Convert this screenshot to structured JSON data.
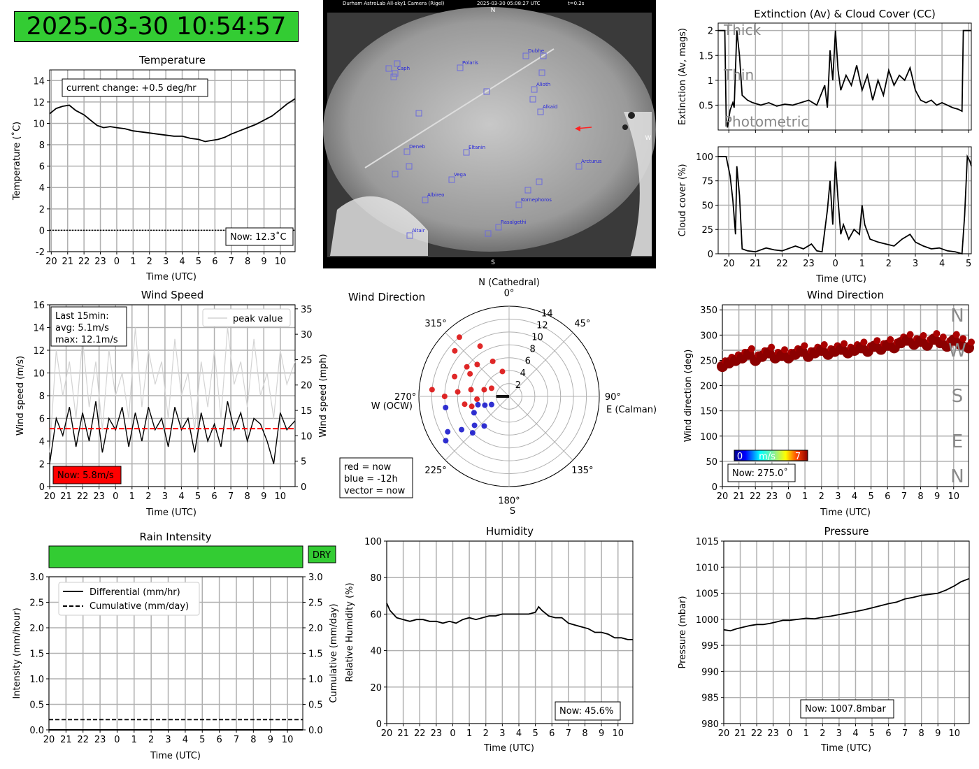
{
  "header": {
    "datetime": "2025-03-30 10:54:57"
  },
  "colors": {
    "dry_green": "#33cc33",
    "now_red": "#ff0000",
    "grid": "#b0b0b0",
    "peak_grey": "#d3d3d3"
  },
  "time_ticks": [
    "20",
    "21",
    "22",
    "23",
    "0",
    "1",
    "2",
    "3",
    "4",
    "5",
    "6",
    "7",
    "8",
    "9",
    "10"
  ],
  "xlabel": "Time (UTC)",
  "temperature": {
    "title": "Temperature",
    "ylabel": "Temperature (˚C)",
    "change_text": "current change: +0.5 deg/hr",
    "now_text": "Now: 12.3˚C"
  },
  "wind_speed": {
    "title": "Wind Speed",
    "ylabel": "Wind speed (m/s)",
    "ylabel2": "Wind speed (mph)",
    "legend": "peak value",
    "stats": [
      "Last 15min:",
      "avg: 5.1m/s",
      "max: 12.1m/s"
    ],
    "now_text": "Now: 5.8m/s"
  },
  "wind_rose": {
    "title": "Wind Direction",
    "north_label": "N (Cathedral)",
    "east_label": "E (Calman)",
    "west_label": "W (OCW)",
    "south_label": "S",
    "legend": [
      "red = now",
      "blue = -12h",
      "vector = now"
    ]
  },
  "wind_dir": {
    "title": "Wind Direction",
    "ylabel": "Wind direction (deg)",
    "compass": [
      "N",
      "W",
      "S",
      "E",
      "N"
    ],
    "colorbar_min": "0",
    "colorbar_unit": "m/s",
    "colorbar_max": "7",
    "now_text": "Now: 275.0˚"
  },
  "sky_camera": {
    "caption_left": "Durham AstroLab All-sky1 Camera (Rigel)",
    "caption_mid": "2025-03-30 05:08:27 UTC",
    "caption_right": "t=0.2s",
    "north": "N",
    "south": "S",
    "west": "W",
    "stars": [
      "Dubhe",
      "Polaris",
      "Caph",
      "Alioth",
      "Alkaid",
      "Deneb",
      "Eltanin",
      "Arcturus",
      "Vega",
      "Albireo",
      "Kornephoros",
      "Rasalgethi",
      "Altair"
    ]
  },
  "extinction": {
    "title": "Extinction (Av) & Cloud Cover (CC)",
    "ylabel": "Extinction (Av, mags)",
    "labels": [
      "Thick",
      "Thin",
      "Photometric"
    ]
  },
  "cloud": {
    "ylabel": "Cloud cover (%)",
    "ticks": [
      "20",
      "21",
      "22",
      "23",
      "0",
      "1",
      "2",
      "3",
      "4",
      "5"
    ]
  },
  "rain": {
    "title": "Rain Intensity",
    "status": "DRY",
    "ylabel": "Intensity (mm/hour)",
    "ylabel2": "Cumulative (mm/day)",
    "legend": [
      "Differential (mm/hr)",
      "Cumulative (mm/day)"
    ]
  },
  "humidity": {
    "title": "Humidity",
    "ylabel": "Relative Humidity (%)",
    "now_text": "Now: 45.6%"
  },
  "pressure": {
    "title": "Pressure",
    "ylabel": "Pressure (mbar)",
    "now_text": "Now: 1007.8mbar"
  },
  "chart_data": [
    {
      "id": "temperature",
      "type": "line",
      "title": "Temperature",
      "xlabel": "Time (UTC)",
      "ylabel": "Temperature (˚C)",
      "ylim": [
        -2,
        15
      ],
      "yticks": [
        -2,
        0,
        2,
        4,
        6,
        8,
        10,
        12,
        14
      ],
      "xlim": [
        -4.1,
        10.9
      ],
      "series": [
        {
          "x": [
            -4.1,
            -3.7,
            -3.3,
            -2.9,
            -2.5,
            -2.0,
            -1.6,
            -1.2,
            -0.8,
            -0.4,
            0.0,
            0.5,
            1.0,
            1.5,
            2.0,
            2.5,
            3.0,
            3.5,
            4.0,
            4.5,
            5.0,
            5.4,
            5.8,
            6.2,
            6.6,
            7.0,
            7.5,
            8.0,
            8.5,
            9.0,
            9.5,
            10.0,
            10.4,
            10.9
          ],
          "y": [
            10.9,
            11.4,
            11.6,
            11.7,
            11.2,
            10.8,
            10.3,
            9.8,
            9.6,
            9.7,
            9.6,
            9.5,
            9.3,
            9.2,
            9.1,
            9.0,
            8.9,
            8.8,
            8.8,
            8.6,
            8.5,
            8.3,
            8.4,
            8.5,
            8.7,
            9.0,
            9.3,
            9.6,
            9.9,
            10.3,
            10.7,
            11.3,
            11.8,
            12.3
          ]
        }
      ]
    },
    {
      "id": "wind_speed",
      "type": "line",
      "title": "Wind Speed",
      "xlabel": "Time (UTC)",
      "ylabel": "Wind speed (m/s)",
      "ylim": [
        0,
        16
      ],
      "yticks": [
        0,
        2,
        4,
        6,
        8,
        10,
        12,
        14,
        16
      ],
      "y2lim": [
        0,
        35.8
      ],
      "y2ticks": [
        0,
        5,
        10,
        15,
        20,
        25,
        30,
        35
      ],
      "xlim": [
        -4.0,
        10.9
      ],
      "mean": 5.1,
      "series": [
        {
          "kind": "peak",
          "x": [
            -4.0,
            -3.6,
            -3.2,
            -2.8,
            -2.4,
            -2.0,
            -1.6,
            -1.2,
            -0.8,
            -0.4,
            0.0,
            0.4,
            0.8,
            1.2,
            1.6,
            2.0,
            2.4,
            2.8,
            3.2,
            3.6,
            4.0,
            4.4,
            4.8,
            5.2,
            5.6,
            6.0,
            6.4,
            6.8,
            7.2,
            7.6,
            8.0,
            8.4,
            8.8,
            9.2,
            9.6,
            10.0,
            10.4,
            10.9
          ],
          "y": [
            3,
            12,
            8,
            11,
            6,
            13,
            7,
            11,
            5,
            12,
            8,
            10,
            6,
            14,
            7,
            12,
            9,
            11,
            6,
            13,
            8,
            10,
            5,
            11,
            7,
            12,
            6,
            14,
            9,
            11,
            7,
            13,
            8,
            10,
            6,
            12,
            9,
            11
          ]
        },
        {
          "kind": "avg",
          "x": [
            -4.0,
            -3.6,
            -3.2,
            -2.8,
            -2.4,
            -2.0,
            -1.6,
            -1.2,
            -0.8,
            -0.4,
            0.0,
            0.4,
            0.8,
            1.2,
            1.6,
            2.0,
            2.4,
            2.8,
            3.2,
            3.6,
            4.0,
            4.4,
            4.8,
            5.2,
            5.6,
            6.0,
            6.4,
            6.8,
            7.2,
            7.6,
            8.0,
            8.4,
            8.8,
            9.2,
            9.6,
            10.0,
            10.4,
            10.9
          ],
          "y": [
            2,
            6,
            4.5,
            7,
            3.5,
            6.5,
            4,
            7.5,
            3,
            6,
            5,
            7,
            3.5,
            6.5,
            4,
            7,
            5,
            6,
            3.5,
            7,
            5,
            6,
            3,
            6.5,
            4,
            5.5,
            3.5,
            7.5,
            5,
            6.5,
            4,
            6,
            5.5,
            4,
            2,
            6.5,
            5,
            5.8
          ]
        }
      ]
    },
    {
      "id": "wind_rose",
      "type": "scatter",
      "title": "Wind Direction",
      "rlim": [
        0,
        14
      ],
      "rticks": [
        2,
        4,
        6,
        8,
        10,
        12,
        14
      ],
      "angle_ticks": [
        0,
        45,
        90,
        135,
        180,
        225,
        270,
        315
      ],
      "series": [
        {
          "name": "now",
          "dir": [
            265,
            275,
            280,
            290,
            300,
            310,
            320,
            330,
            255,
            270,
            285,
            305,
            315,
            335,
            345,
            295,
            275,
            260
          ],
          "speed": [
            5,
            8,
            6,
            9,
            7,
            11,
            12,
            9,
            6,
            10,
            4,
            8,
            7,
            6,
            4,
            3,
            12,
            7
          ]
        },
        {
          "name": "-12h",
          "dir": [
            245,
            235,
            250,
            240,
            230,
            255,
            225,
            260,
            245,
            235,
            220
          ],
          "speed": [
            6,
            9,
            4,
            11,
            7,
            5,
            8,
            10,
            3,
            12,
            6
          ]
        },
        {
          "name": "vector",
          "dir": [
            270
          ],
          "speed": [
            2
          ]
        }
      ]
    },
    {
      "id": "wind_dir",
      "type": "scatter",
      "title": "Wind Direction",
      "xlabel": "Time (UTC)",
      "ylabel": "Wind direction (deg)",
      "ylim": [
        0,
        360
      ],
      "yticks": [
        0,
        50,
        100,
        150,
        200,
        250,
        300,
        350
      ],
      "xlim": [
        -4.0,
        10.9
      ],
      "series": [
        {
          "x": [
            -4.0,
            -3.6,
            -3.2,
            -2.8,
            -2.4,
            -2.0,
            -1.6,
            -1.2,
            -0.8,
            -0.4,
            0.0,
            0.4,
            0.8,
            1.2,
            1.6,
            2.0,
            2.4,
            2.8,
            3.2,
            3.6,
            4.0,
            4.4,
            4.8,
            5.2,
            5.6,
            6.0,
            6.4,
            6.8,
            7.2,
            7.6,
            8.0,
            8.4,
            8.8,
            9.2,
            9.6,
            10.0,
            10.4,
            10.9
          ],
          "y": [
            238,
            245,
            250,
            255,
            262,
            250,
            258,
            265,
            255,
            260,
            255,
            262,
            268,
            258,
            265,
            270,
            262,
            268,
            272,
            265,
            270,
            275,
            268,
            278,
            272,
            280,
            275,
            285,
            290,
            282,
            288,
            280,
            292,
            285,
            278,
            290,
            282,
            275
          ]
        }
      ]
    },
    {
      "id": "extinction",
      "type": "line",
      "title": "Extinction (Av) & Cloud Cover (CC)",
      "xlabel": "",
      "ylabel": "Extinction (Av, mags)",
      "ylim": [
        0,
        2.15
      ],
      "yticks": [
        0.5,
        1.0,
        1.5,
        2.0
      ],
      "xlim": [
        -4.4,
        5.1
      ],
      "series": [
        {
          "x": [
            -4.4,
            -4.15,
            -4.1,
            -4.05,
            -3.95,
            -3.85,
            -3.8,
            -3.7,
            -3.6,
            -3.5,
            -3.3,
            -3.1,
            -2.8,
            -2.5,
            -2.2,
            -1.9,
            -1.6,
            -1.3,
            -1.0,
            -0.7,
            -0.4,
            -0.3,
            -0.2,
            -0.1,
            0.0,
            0.1,
            0.2,
            0.4,
            0.6,
            0.8,
            1.0,
            1.2,
            1.4,
            1.6,
            1.8,
            2.0,
            2.2,
            2.4,
            2.6,
            2.8,
            3.0,
            3.2,
            3.4,
            3.6,
            3.8,
            4.0,
            4.2,
            4.4,
            4.6,
            4.75,
            4.8,
            4.9,
            5.0,
            5.1
          ],
          "y": [
            2.0,
            2.0,
            0.3,
            0.05,
            0.4,
            0.55,
            0.45,
            2.0,
            1.5,
            0.7,
            0.6,
            0.55,
            0.5,
            0.55,
            0.48,
            0.52,
            0.5,
            0.55,
            0.6,
            0.5,
            0.9,
            0.45,
            1.6,
            1.0,
            2.0,
            1.2,
            0.8,
            1.1,
            0.9,
            1.3,
            0.8,
            1.1,
            0.6,
            1.0,
            0.7,
            1.2,
            0.9,
            1.1,
            1.0,
            1.25,
            0.8,
            0.6,
            0.55,
            0.6,
            0.5,
            0.55,
            0.5,
            0.45,
            0.42,
            0.38,
            2.0,
            2.0,
            2.0,
            2.0
          ]
        }
      ]
    },
    {
      "id": "cloud_cover",
      "type": "line",
      "title": "",
      "xlabel": "Time (UTC)",
      "ylabel": "Cloud cover (%)",
      "ylim": [
        0,
        110
      ],
      "yticks": [
        0,
        25,
        50,
        75,
        100
      ],
      "xlim": [
        -4.4,
        5.1
      ],
      "series": [
        {
          "x": [
            -4.4,
            -4.1,
            -3.95,
            -3.85,
            -3.75,
            -3.7,
            -3.6,
            -3.5,
            -3.3,
            -3.0,
            -2.6,
            -2.3,
            -2.0,
            -1.5,
            -1.2,
            -0.9,
            -0.7,
            -0.5,
            -0.3,
            -0.2,
            -0.1,
            0.0,
            0.1,
            0.2,
            0.3,
            0.5,
            0.7,
            0.9,
            1.0,
            1.1,
            1.3,
            1.6,
            1.9,
            2.2,
            2.5,
            2.8,
            3.0,
            3.3,
            3.6,
            3.9,
            4.2,
            4.5,
            4.75,
            4.85,
            4.95,
            5.05,
            5.1
          ],
          "y": [
            100,
            100,
            80,
            55,
            20,
            90,
            60,
            5,
            3,
            2,
            6,
            4,
            3,
            8,
            5,
            10,
            3,
            2,
            45,
            75,
            30,
            95,
            55,
            20,
            30,
            15,
            25,
            20,
            50,
            30,
            15,
            12,
            10,
            8,
            15,
            20,
            12,
            8,
            5,
            6,
            3,
            2,
            0,
            40,
            100,
            95,
            90
          ]
        }
      ]
    },
    {
      "id": "rain",
      "type": "line",
      "title": "Rain Intensity",
      "xlabel": "Time (UTC)",
      "ylabel": "Intensity (mm/hour)",
      "ylim": [
        0,
        3.0
      ],
      "yticks": [
        0.0,
        0.5,
        1.0,
        1.5,
        2.0,
        2.5,
        3.0
      ],
      "xlim": [
        -4.0,
        10.9
      ],
      "series": [
        {
          "name": "Differential (mm/hr)",
          "x": [
            -4.0,
            10.9
          ],
          "y": [
            0.0,
            0.0
          ]
        },
        {
          "name": "Cumulative (mm/day)",
          "x": [
            -4.0,
            10.9
          ],
          "y": [
            0.2,
            0.2
          ]
        }
      ]
    },
    {
      "id": "humidity",
      "type": "line",
      "title": "Humidity",
      "xlabel": "Time (UTC)",
      "ylabel": "Relative Humidity (%)",
      "ylim": [
        0,
        100
      ],
      "yticks": [
        0,
        20,
        40,
        60,
        80,
        100
      ],
      "xlim": [
        -4.0,
        10.9
      ],
      "series": [
        {
          "x": [
            -4.0,
            -3.8,
            -3.4,
            -3.0,
            -2.6,
            -2.2,
            -1.8,
            -1.4,
            -1.0,
            -0.6,
            -0.2,
            0.2,
            0.6,
            1.0,
            1.4,
            1.8,
            2.2,
            2.6,
            3.0,
            3.4,
            3.8,
            4.2,
            4.6,
            5.0,
            5.2,
            5.4,
            5.8,
            6.2,
            6.6,
            7.0,
            7.4,
            7.8,
            8.2,
            8.6,
            9.0,
            9.4,
            9.8,
            10.2,
            10.6,
            10.9
          ],
          "y": [
            66,
            62,
            58,
            57,
            56,
            57,
            57,
            56,
            56,
            55,
            56,
            55,
            57,
            58,
            57,
            58,
            59,
            59,
            60,
            60,
            60,
            60,
            60,
            61,
            64,
            62,
            59,
            58,
            58,
            55,
            54,
            53,
            52,
            50,
            50,
            49,
            47,
            47,
            46,
            46
          ]
        }
      ]
    },
    {
      "id": "pressure",
      "type": "line",
      "title": "Pressure",
      "xlabel": "Time (UTC)",
      "ylabel": "Pressure (mbar)",
      "ylim": [
        980,
        1015
      ],
      "yticks": [
        980,
        985,
        990,
        995,
        1000,
        1005,
        1010,
        1015
      ],
      "xlim": [
        -4.0,
        10.9
      ],
      "series": [
        {
          "x": [
            -4.0,
            -3.6,
            -3.2,
            -2.8,
            -2.4,
            -2.0,
            -1.6,
            -1.2,
            -0.8,
            -0.4,
            0.0,
            0.5,
            1.0,
            1.5,
            2.0,
            2.5,
            3.0,
            3.5,
            4.0,
            4.5,
            5.0,
            5.5,
            6.0,
            6.5,
            7.0,
            7.5,
            8.0,
            8.5,
            9.0,
            9.5,
            10.0,
            10.4,
            10.9
          ],
          "y": [
            998.0,
            997.8,
            998.2,
            998.5,
            998.8,
            999.0,
            999.0,
            999.2,
            999.5,
            999.8,
            999.8,
            1000.0,
            1000.2,
            1000.1,
            1000.4,
            1000.6,
            1000.9,
            1001.2,
            1001.5,
            1001.8,
            1002.2,
            1002.6,
            1003.0,
            1003.3,
            1003.9,
            1004.2,
            1004.6,
            1004.8,
            1005.0,
            1005.6,
            1006.4,
            1007.2,
            1007.8
          ]
        }
      ]
    }
  ]
}
